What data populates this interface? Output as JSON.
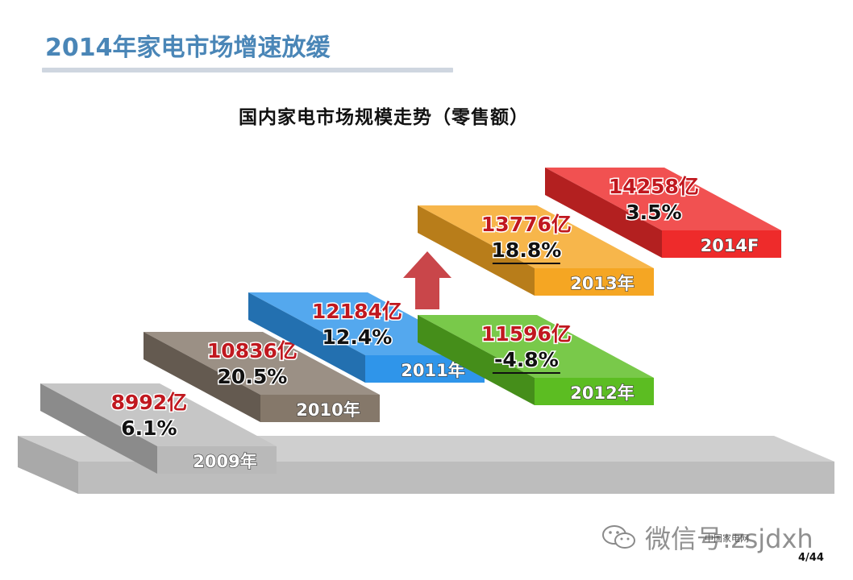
{
  "slide": {
    "title": "2014年家电市场增速放缓",
    "page_number": "4/44"
  },
  "chart_data": {
    "type": "bar",
    "title": "国内家电市场规模走势（零售额）",
    "categories": [
      "2009年",
      "2010年",
      "2011年",
      "2012年",
      "2013年",
      "2014F"
    ],
    "series": [
      {
        "values": [
          8992,
          10836,
          12184,
          11596,
          13776,
          14258
        ]
      }
    ],
    "value_labels": [
      "8992亿",
      "10836亿",
      "12184亿",
      "11596亿",
      "13776亿",
      "14258亿"
    ],
    "growth_labels": [
      "6.1%",
      "20.5%",
      "12.4%",
      "-4.8%",
      "18.8%",
      "3.5%"
    ],
    "growth": [
      6.1,
      20.5,
      12.4,
      -4.8,
      18.8,
      3.5
    ],
    "colors": [
      "#b9b9b9",
      "#85786a",
      "#2f95ea",
      "#5cbd22",
      "#f5a623",
      "#ee2b2b"
    ],
    "annotation": "arrow-up-icon"
  },
  "watermark": {
    "prefix": "微信号:",
    "account": "zsjdxh",
    "overlay_text": "中国家电网",
    "icon": "wechat-icon"
  }
}
